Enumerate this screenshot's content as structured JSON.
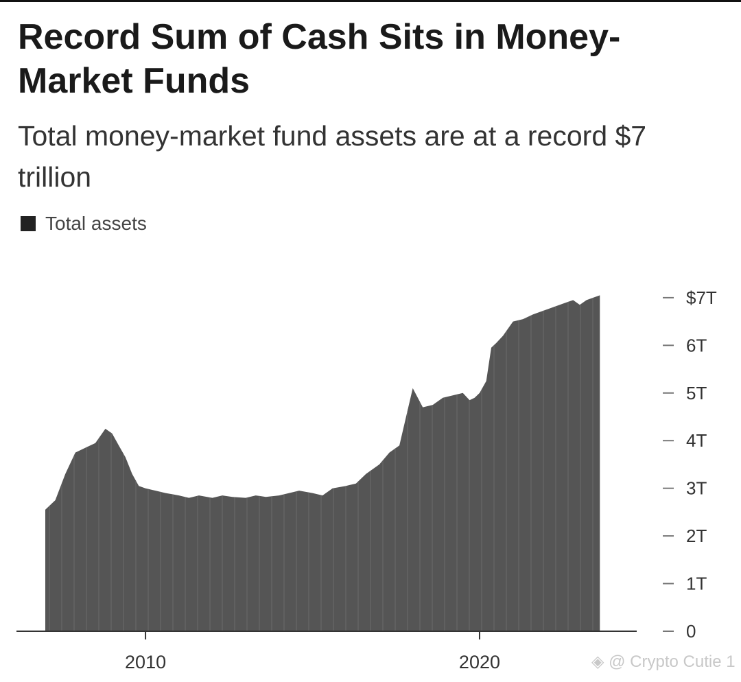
{
  "header": {
    "title": "Record Sum of Cash Sits in Money-Market Funds",
    "subtitle": "Total money-market fund assets are at a record $7 trillion"
  },
  "legend": {
    "label": "Total assets"
  },
  "watermark": {
    "text": "◈ @ Crypto Cutie 1"
  },
  "colors": {
    "series": "#555555",
    "axis": "#333333",
    "tick_text": "#333333"
  },
  "chart_data": {
    "type": "area",
    "title": "Record Sum of Cash Sits in Money-Market Funds",
    "subtitle": "Total money-market fund assets are at a record $7 trillion",
    "xlabel": "",
    "ylabel": "",
    "xlim": [
      2007.0,
      2023.8
    ],
    "ylim": [
      0,
      7.2
    ],
    "y_axis_side": "right",
    "y_ticks": [
      {
        "value": 0,
        "label": "0"
      },
      {
        "value": 1,
        "label": "1T"
      },
      {
        "value": 2,
        "label": "2T"
      },
      {
        "value": 3,
        "label": "3T"
      },
      {
        "value": 4,
        "label": "4T"
      },
      {
        "value": 5,
        "label": "5T"
      },
      {
        "value": 6,
        "label": "6T"
      },
      {
        "value": 7,
        "label": "$7T"
      }
    ],
    "x_ticks": [
      {
        "value": 2010,
        "label": "2010"
      },
      {
        "value": 2020,
        "label": "2020"
      }
    ],
    "grid": false,
    "legend_position": "top-left",
    "series": [
      {
        "name": "Total assets",
        "x": [
          2007.0,
          2007.3,
          2007.6,
          2007.9,
          2008.2,
          2008.5,
          2008.8,
          2009.0,
          2009.2,
          2009.4,
          2009.6,
          2009.8,
          2010.0,
          2010.3,
          2010.6,
          2011.0,
          2011.3,
          2011.6,
          2012.0,
          2012.3,
          2012.6,
          2013.0,
          2013.3,
          2013.6,
          2014.0,
          2014.3,
          2014.6,
          2015.0,
          2015.3,
          2015.6,
          2016.0,
          2016.3,
          2016.6,
          2017.0,
          2017.3,
          2017.6,
          2018.0,
          2018.3,
          2018.6,
          2018.9,
          2019.2,
          2019.5,
          2019.7,
          2019.85,
          2020.0,
          2020.2,
          2020.35,
          2020.5,
          2020.7,
          2021.0,
          2021.3,
          2021.6,
          2021.8,
          2022.0,
          2022.2,
          2022.4,
          2022.6,
          2022.8,
          2023.0,
          2023.2,
          2023.4,
          2023.6
        ],
        "values": [
          2.55,
          2.75,
          3.3,
          3.75,
          3.85,
          3.95,
          4.25,
          4.15,
          3.9,
          3.65,
          3.3,
          3.05,
          3.0,
          2.95,
          2.9,
          2.85,
          2.8,
          2.85,
          2.8,
          2.85,
          2.82,
          2.8,
          2.85,
          2.82,
          2.85,
          2.9,
          2.95,
          2.9,
          2.85,
          3.0,
          3.05,
          3.1,
          3.3,
          3.5,
          3.75,
          3.9,
          5.1,
          4.7,
          4.75,
          4.9,
          4.95,
          5.0,
          4.85,
          4.9,
          5.0,
          5.25,
          5.95,
          6.05,
          6.2,
          6.5,
          6.55,
          6.65,
          6.7,
          6.75,
          6.8,
          6.85,
          6.9,
          6.95,
          6.85,
          6.95,
          7.0,
          7.05
        ]
      }
    ]
  }
}
